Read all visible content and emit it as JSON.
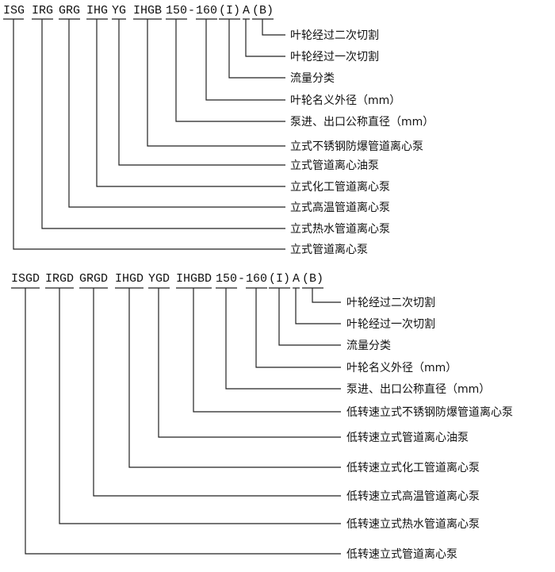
{
  "sections": [
    {
      "codes": [
        "ISG",
        "IRG",
        "GRG",
        "IHG",
        "YG",
        "IHGB",
        "150",
        "-",
        "160",
        "(I)",
        "A",
        "(B)"
      ],
      "labels": [
        "叶轮经过二次切割",
        "叶轮经过一次切割",
        "流量分类",
        "叶轮名义外径（mm）",
        "泵进、出口公称直径（mm）",
        "立式不锈钢防爆管道离心泵",
        "立式管道离心油泵",
        "立式化工管道离心泵",
        "立式高温管道离心泵",
        "立式热水管道离心泵",
        "立式管道离心泵"
      ]
    },
    {
      "codes": [
        "ISGD",
        "IRGD",
        "GRGD",
        "IHGD",
        "YGD",
        "IHGBD",
        "150",
        "-",
        "160",
        "(I)",
        "A",
        "(B)"
      ],
      "labels": [
        "叶轮经过二次切割",
        "叶轮经过一次切割",
        "流量分类",
        "叶轮名义外径（mm）",
        "泵进、出口公称直径（mm）",
        "低转速立式不锈钢防爆管道离心泵",
        "低转速立式管道离心油泵",
        "低转速立式化工管道离心泵",
        "低转速立式高温管道离心泵",
        "低转速立式热水管道离心泵",
        "低转速立式管道离心泵"
      ]
    }
  ]
}
